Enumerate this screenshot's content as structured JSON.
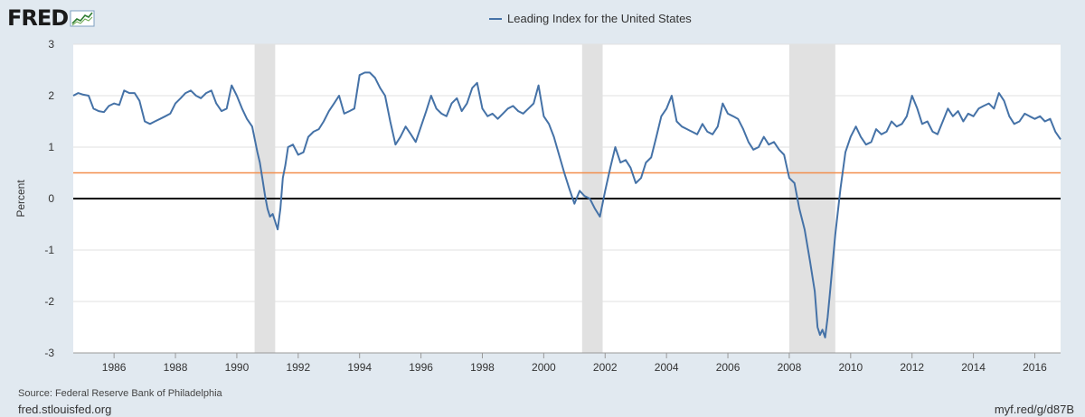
{
  "brand": {
    "logo_text": "FRED"
  },
  "source_note": "Source: Federal Reserve Bank of Philadelphia",
  "footer": {
    "site": "fred.stlouisfed.org",
    "short_link": "myf.red/g/d87B"
  },
  "colors": {
    "series": "#4572a7",
    "reference": "#f28e4c",
    "zero": "#000000",
    "recession": "#e1e1e1",
    "grid": "#e1e1e1"
  },
  "chart_data": {
    "type": "line",
    "title": "",
    "ylabel": "Percent",
    "xlabel": "",
    "xlim": [
      1984.67,
      2016.84
    ],
    "ylim": [
      -3,
      3
    ],
    "grid": true,
    "legend_position": "top-center",
    "x_ticks": [
      "1986",
      "1988",
      "1990",
      "1992",
      "1994",
      "1996",
      "1998",
      "2000",
      "2002",
      "2004",
      "2006",
      "2008",
      "2010",
      "2012",
      "2014",
      "2016"
    ],
    "y_ticks": [
      "-3",
      "-2",
      "-1",
      "0",
      "1",
      "2",
      "3"
    ],
    "reference_lines": [
      {
        "y": 0,
        "color": "#000000"
      },
      {
        "y": 0.5,
        "color": "#f28e4c"
      }
    ],
    "recessions": [
      [
        1990.58,
        1991.25
      ],
      [
        2001.25,
        2001.92
      ],
      [
        2008.0,
        2009.5
      ]
    ],
    "series": [
      {
        "name": "Leading Index for the United States",
        "points": [
          [
            1984.67,
            2.0
          ],
          [
            1984.83,
            2.05
          ],
          [
            1985.0,
            2.02
          ],
          [
            1985.17,
            2.0
          ],
          [
            1985.33,
            1.75
          ],
          [
            1985.5,
            1.7
          ],
          [
            1985.67,
            1.68
          ],
          [
            1985.83,
            1.8
          ],
          [
            1986.0,
            1.85
          ],
          [
            1986.17,
            1.82
          ],
          [
            1986.33,
            2.1
          ],
          [
            1986.5,
            2.05
          ],
          [
            1986.67,
            2.05
          ],
          [
            1986.83,
            1.9
          ],
          [
            1987.0,
            1.5
          ],
          [
            1987.17,
            1.45
          ],
          [
            1987.33,
            1.5
          ],
          [
            1987.5,
            1.55
          ],
          [
            1987.67,
            1.6
          ],
          [
            1987.83,
            1.65
          ],
          [
            1988.0,
            1.85
          ],
          [
            1988.17,
            1.95
          ],
          [
            1988.33,
            2.05
          ],
          [
            1988.5,
            2.1
          ],
          [
            1988.67,
            2.0
          ],
          [
            1988.83,
            1.95
          ],
          [
            1989.0,
            2.05
          ],
          [
            1989.17,
            2.1
          ],
          [
            1989.33,
            1.85
          ],
          [
            1989.5,
            1.7
          ],
          [
            1989.67,
            1.75
          ],
          [
            1989.83,
            2.2
          ],
          [
            1990.0,
            2.0
          ],
          [
            1990.17,
            1.75
          ],
          [
            1990.33,
            1.55
          ],
          [
            1990.5,
            1.4
          ],
          [
            1990.67,
            0.9
          ],
          [
            1990.75,
            0.7
          ],
          [
            1990.83,
            0.4
          ],
          [
            1990.92,
            0.05
          ],
          [
            1991.0,
            -0.2
          ],
          [
            1991.08,
            -0.35
          ],
          [
            1991.17,
            -0.3
          ],
          [
            1991.25,
            -0.45
          ],
          [
            1991.33,
            -0.6
          ],
          [
            1991.42,
            -0.2
          ],
          [
            1991.5,
            0.4
          ],
          [
            1991.58,
            0.65
          ],
          [
            1991.67,
            1.0
          ],
          [
            1991.83,
            1.05
          ],
          [
            1992.0,
            0.85
          ],
          [
            1992.17,
            0.9
          ],
          [
            1992.33,
            1.2
          ],
          [
            1992.5,
            1.3
          ],
          [
            1992.67,
            1.35
          ],
          [
            1992.83,
            1.5
          ],
          [
            1993.0,
            1.7
          ],
          [
            1993.17,
            1.85
          ],
          [
            1993.33,
            2.0
          ],
          [
            1993.5,
            1.65
          ],
          [
            1993.67,
            1.7
          ],
          [
            1993.83,
            1.75
          ],
          [
            1994.0,
            2.4
          ],
          [
            1994.17,
            2.45
          ],
          [
            1994.33,
            2.45
          ],
          [
            1994.5,
            2.35
          ],
          [
            1994.67,
            2.15
          ],
          [
            1994.83,
            2.0
          ],
          [
            1995.0,
            1.5
          ],
          [
            1995.17,
            1.05
          ],
          [
            1995.33,
            1.2
          ],
          [
            1995.5,
            1.4
          ],
          [
            1995.67,
            1.25
          ],
          [
            1995.83,
            1.1
          ],
          [
            1996.0,
            1.4
          ],
          [
            1996.17,
            1.7
          ],
          [
            1996.33,
            2.0
          ],
          [
            1996.5,
            1.75
          ],
          [
            1996.67,
            1.65
          ],
          [
            1996.83,
            1.6
          ],
          [
            1997.0,
            1.85
          ],
          [
            1997.17,
            1.95
          ],
          [
            1997.33,
            1.7
          ],
          [
            1997.5,
            1.85
          ],
          [
            1997.67,
            2.15
          ],
          [
            1997.83,
            2.25
          ],
          [
            1998.0,
            1.75
          ],
          [
            1998.17,
            1.6
          ],
          [
            1998.33,
            1.65
          ],
          [
            1998.5,
            1.55
          ],
          [
            1998.67,
            1.65
          ],
          [
            1998.83,
            1.75
          ],
          [
            1999.0,
            1.8
          ],
          [
            1999.17,
            1.7
          ],
          [
            1999.33,
            1.65
          ],
          [
            1999.5,
            1.75
          ],
          [
            1999.67,
            1.85
          ],
          [
            1999.83,
            2.2
          ],
          [
            2000.0,
            1.6
          ],
          [
            2000.17,
            1.45
          ],
          [
            2000.33,
            1.2
          ],
          [
            2000.5,
            0.85
          ],
          [
            2000.67,
            0.5
          ],
          [
            2000.83,
            0.2
          ],
          [
            2001.0,
            -0.1
          ],
          [
            2001.17,
            0.15
          ],
          [
            2001.33,
            0.05
          ],
          [
            2001.5,
            0.0
          ],
          [
            2001.67,
            -0.2
          ],
          [
            2001.83,
            -0.35
          ],
          [
            2002.0,
            0.15
          ],
          [
            2002.17,
            0.6
          ],
          [
            2002.33,
            1.0
          ],
          [
            2002.5,
            0.7
          ],
          [
            2002.67,
            0.75
          ],
          [
            2002.83,
            0.6
          ],
          [
            2003.0,
            0.3
          ],
          [
            2003.17,
            0.4
          ],
          [
            2003.33,
            0.7
          ],
          [
            2003.5,
            0.8
          ],
          [
            2003.67,
            1.2
          ],
          [
            2003.83,
            1.6
          ],
          [
            2004.0,
            1.75
          ],
          [
            2004.17,
            2.0
          ],
          [
            2004.33,
            1.5
          ],
          [
            2004.5,
            1.4
          ],
          [
            2004.67,
            1.35
          ],
          [
            2004.83,
            1.3
          ],
          [
            2005.0,
            1.25
          ],
          [
            2005.17,
            1.45
          ],
          [
            2005.33,
            1.3
          ],
          [
            2005.5,
            1.25
          ],
          [
            2005.67,
            1.4
          ],
          [
            2005.83,
            1.85
          ],
          [
            2006.0,
            1.65
          ],
          [
            2006.17,
            1.6
          ],
          [
            2006.33,
            1.55
          ],
          [
            2006.5,
            1.35
          ],
          [
            2006.67,
            1.1
          ],
          [
            2006.83,
            0.95
          ],
          [
            2007.0,
            1.0
          ],
          [
            2007.17,
            1.2
          ],
          [
            2007.33,
            1.05
          ],
          [
            2007.5,
            1.1
          ],
          [
            2007.67,
            0.95
          ],
          [
            2007.83,
            0.85
          ],
          [
            2008.0,
            0.4
          ],
          [
            2008.17,
            0.3
          ],
          [
            2008.33,
            -0.2
          ],
          [
            2008.5,
            -0.6
          ],
          [
            2008.67,
            -1.2
          ],
          [
            2008.83,
            -1.8
          ],
          [
            2008.92,
            -2.5
          ],
          [
            2009.0,
            -2.65
          ],
          [
            2009.08,
            -2.55
          ],
          [
            2009.17,
            -2.7
          ],
          [
            2009.25,
            -2.3
          ],
          [
            2009.33,
            -1.8
          ],
          [
            2009.5,
            -0.7
          ],
          [
            2009.67,
            0.2
          ],
          [
            2009.83,
            0.9
          ],
          [
            2010.0,
            1.2
          ],
          [
            2010.17,
            1.4
          ],
          [
            2010.33,
            1.2
          ],
          [
            2010.5,
            1.05
          ],
          [
            2010.67,
            1.1
          ],
          [
            2010.83,
            1.35
          ],
          [
            2011.0,
            1.25
          ],
          [
            2011.17,
            1.3
          ],
          [
            2011.33,
            1.5
          ],
          [
            2011.5,
            1.4
          ],
          [
            2011.67,
            1.45
          ],
          [
            2011.83,
            1.6
          ],
          [
            2012.0,
            2.0
          ],
          [
            2012.17,
            1.75
          ],
          [
            2012.33,
            1.45
          ],
          [
            2012.5,
            1.5
          ],
          [
            2012.67,
            1.3
          ],
          [
            2012.83,
            1.25
          ],
          [
            2013.0,
            1.5
          ],
          [
            2013.17,
            1.75
          ],
          [
            2013.33,
            1.6
          ],
          [
            2013.5,
            1.7
          ],
          [
            2013.67,
            1.5
          ],
          [
            2013.83,
            1.65
          ],
          [
            2014.0,
            1.6
          ],
          [
            2014.17,
            1.75
          ],
          [
            2014.33,
            1.8
          ],
          [
            2014.5,
            1.85
          ],
          [
            2014.67,
            1.75
          ],
          [
            2014.83,
            2.05
          ],
          [
            2015.0,
            1.9
          ],
          [
            2015.17,
            1.6
          ],
          [
            2015.33,
            1.45
          ],
          [
            2015.5,
            1.5
          ],
          [
            2015.67,
            1.65
          ],
          [
            2015.83,
            1.6
          ],
          [
            2016.0,
            1.55
          ],
          [
            2016.17,
            1.6
          ],
          [
            2016.33,
            1.5
          ],
          [
            2016.5,
            1.55
          ],
          [
            2016.67,
            1.3
          ],
          [
            2016.84,
            1.15
          ]
        ]
      }
    ]
  }
}
